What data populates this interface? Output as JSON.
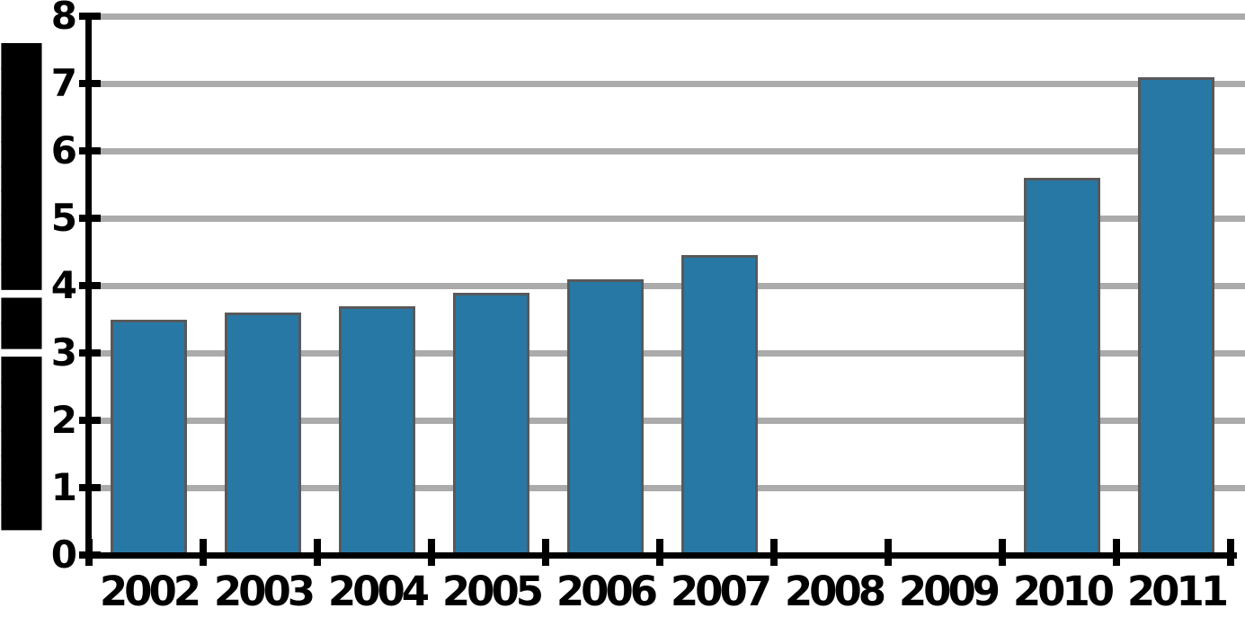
{
  "chart_data": {
    "type": "bar",
    "title": "",
    "xlabel": "",
    "ylabel": "███████ ██ ██████████",
    "ylabel_note": "rotated y-axis title is illegible in source image (rendered as solid black blocks)",
    "categories": [
      "2002",
      "2003",
      "2004",
      "2005",
      "2006",
      "2007",
      "2008",
      "2009",
      "2010",
      "2011"
    ],
    "values": [
      3.5,
      3.6,
      3.7,
      3.9,
      4.1,
      4.45,
      null,
      null,
      5.6,
      7.1
    ],
    "yticks": [
      0,
      1,
      2,
      3,
      4,
      5,
      6,
      7,
      8
    ],
    "ylim": [
      0,
      8
    ],
    "grid": true,
    "legend": "none",
    "colors": {
      "bar_fill": "#2878A5",
      "bar_border": "#58595B",
      "gridline": "#ABABAB",
      "axis": "#000000",
      "text": "#000000",
      "background": "#FFFFFF"
    }
  }
}
